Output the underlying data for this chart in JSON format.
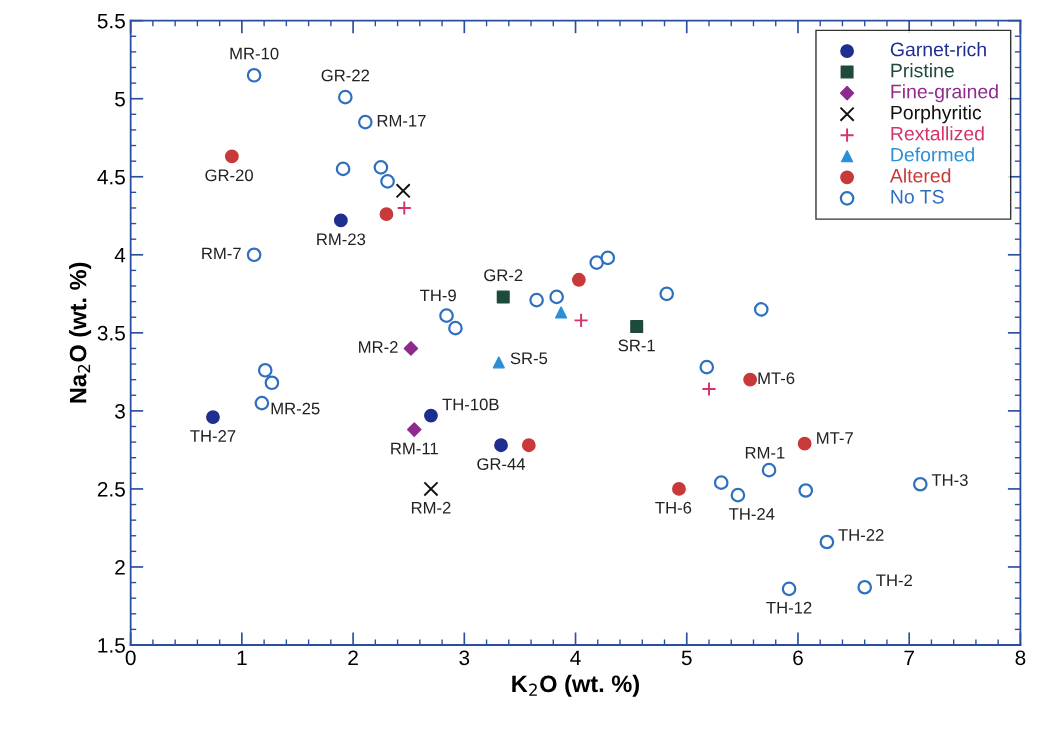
{
  "chart_data": {
    "type": "scatter",
    "xlabel": "K$_{2}$O (wt. %)",
    "ylabel": "Na$_{2}$O (wt. %)",
    "xlim": [
      0,
      8
    ],
    "ylim": [
      1.5,
      5.5
    ],
    "xticks": [
      0,
      1,
      2,
      3,
      4,
      5,
      6,
      7,
      8
    ],
    "yticks": [
      1.5,
      2,
      2.5,
      3,
      3.5,
      4,
      4.5,
      5,
      5.5
    ],
    "grid": false,
    "legend": "top right",
    "series": [
      {
        "name": "Garnet-rich",
        "color": "#1f2e8f",
        "marker": "circle",
        "x": [
          1.89,
          0.74,
          2.7,
          3.33
        ],
        "values": [
          4.22,
          2.96,
          2.97,
          2.78
        ]
      },
      {
        "name": "Pristine",
        "color": "#1e4a3a",
        "marker": "square",
        "x": [
          3.35,
          4.55
        ],
        "values": [
          3.73,
          3.54
        ]
      },
      {
        "name": "Fine-grained",
        "color": "#8e2a8e",
        "marker": "diamond",
        "x": [
          2.52,
          2.55
        ],
        "values": [
          3.4,
          2.88
        ]
      },
      {
        "name": "Porphyritic",
        "color": "#111111",
        "marker": "cross",
        "x": [
          2.45,
          2.7
        ],
        "values": [
          4.41,
          2.5
        ]
      },
      {
        "name": "Rextallized",
        "color": "#d6336c",
        "marker": "plus",
        "x": [
          2.46,
          4.05,
          5.2
        ],
        "values": [
          4.3,
          3.58,
          3.14
        ]
      },
      {
        "name": "Deformed",
        "color": "#2a8fd8",
        "marker": "triangle",
        "x": [
          3.87,
          3.31
        ],
        "values": [
          3.63,
          3.31
        ]
      },
      {
        "name": "Altered",
        "color": "#c8393a",
        "marker": "circle",
        "x": [
          0.91,
          2.3,
          4.03,
          3.58,
          5.57,
          6.06,
          4.93
        ],
        "values": [
          4.63,
          4.26,
          3.84,
          2.78,
          3.2,
          2.79,
          2.5
        ]
      },
      {
        "name": "No TS",
        "color": "#2e6fc0",
        "marker": "circle-open",
        "x": [
          1.11,
          1.93,
          2.11,
          1.91,
          2.25,
          2.31,
          1.11,
          3.65,
          3.83,
          2.84,
          2.92,
          4.19,
          4.29,
          4.82,
          5.67,
          1.21,
          1.27,
          1.18,
          5.18,
          5.74,
          5.31,
          5.46,
          6.07,
          7.1,
          6.26,
          6.6,
          5.92
        ],
        "values": [
          5.15,
          5.01,
          4.85,
          4.55,
          4.56,
          4.47,
          4.0,
          3.71,
          3.73,
          3.61,
          3.53,
          3.95,
          3.98,
          3.75,
          3.65,
          3.26,
          3.18,
          3.05,
          3.28,
          2.62,
          2.54,
          2.46,
          2.49,
          2.53,
          2.16,
          1.87,
          1.86
        ]
      }
    ],
    "annotations": [
      {
        "text": "MR-10",
        "x": 1.11,
        "y": 5.15
      },
      {
        "text": "GR-22",
        "x": 1.93,
        "y": 5.01
      },
      {
        "text": "RM-17",
        "x": 2.11,
        "y": 4.85
      },
      {
        "text": "GR-20",
        "x": 0.91,
        "y": 4.63
      },
      {
        "text": "RM-23",
        "x": 1.89,
        "y": 4.22
      },
      {
        "text": "RM-7",
        "x": 1.11,
        "y": 4.0
      },
      {
        "text": "GR-2",
        "x": 3.35,
        "y": 3.73
      },
      {
        "text": "TH-9",
        "x": 2.84,
        "y": 3.61
      },
      {
        "text": "MR-2",
        "x": 2.52,
        "y": 3.4
      },
      {
        "text": "SR-5",
        "x": 3.31,
        "y": 3.31
      },
      {
        "text": "SR-1",
        "x": 4.55,
        "y": 3.54
      },
      {
        "text": "MT-6",
        "x": 5.57,
        "y": 3.2
      },
      {
        "text": "MT-7",
        "x": 6.06,
        "y": 2.79
      },
      {
        "text": "RM-1",
        "x": 5.74,
        "y": 2.62
      },
      {
        "text": "TH-6",
        "x": 4.93,
        "y": 2.5
      },
      {
        "text": "TH-24",
        "x": 5.46,
        "y": 2.46
      },
      {
        "text": "TH-3",
        "x": 7.1,
        "y": 2.53
      },
      {
        "text": "TH-22",
        "x": 6.26,
        "y": 2.16
      },
      {
        "text": "TH-2",
        "x": 6.6,
        "y": 1.87
      },
      {
        "text": "TH-12",
        "x": 5.92,
        "y": 1.86
      },
      {
        "text": "TH-27",
        "x": 0.74,
        "y": 2.96
      },
      {
        "text": "MR-25",
        "x": 1.18,
        "y": 3.05
      },
      {
        "text": "TH-10B",
        "x": 2.7,
        "y": 2.97
      },
      {
        "text": "RM-11",
        "x": 2.55,
        "y": 2.88
      },
      {
        "text": "GR-44",
        "x": 3.33,
        "y": 2.78
      },
      {
        "text": "RM-2",
        "x": 2.7,
        "y": 2.5
      }
    ]
  }
}
